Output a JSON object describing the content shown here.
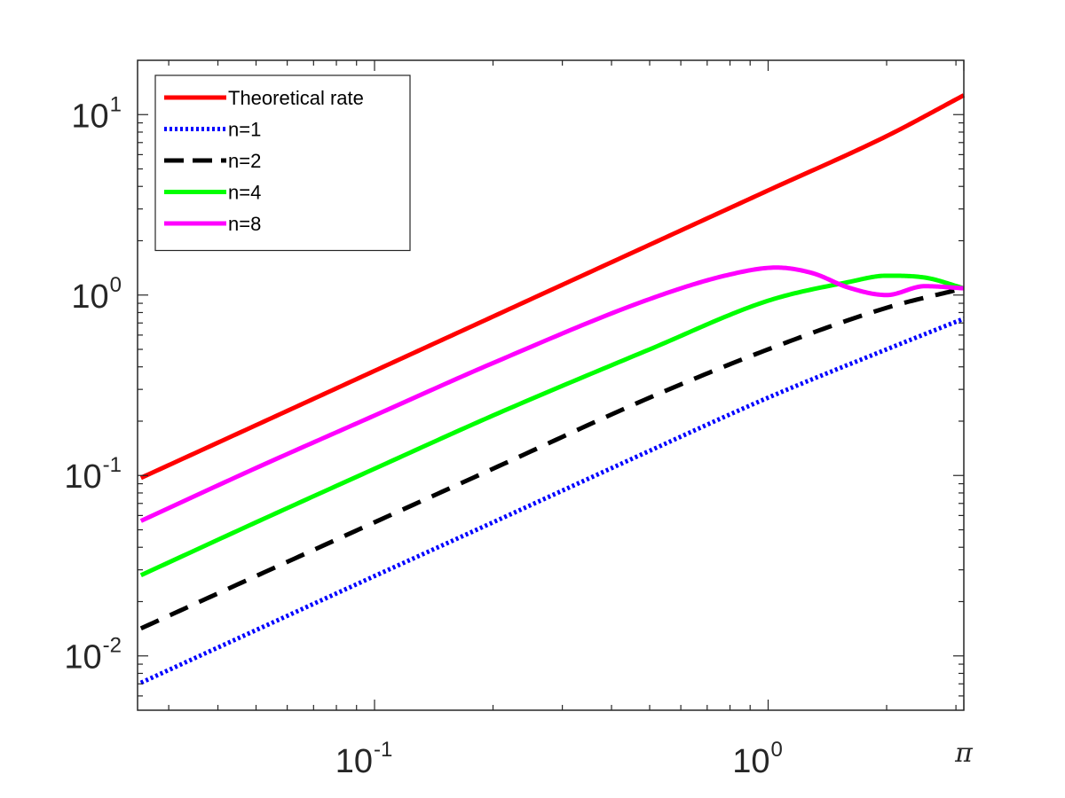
{
  "chart_data": {
    "type": "line",
    "title": "",
    "xlabel": "",
    "ylabel": "",
    "xscale": "log",
    "yscale": "log",
    "xlim": [
      0.025,
      3.14159
    ],
    "ylim": [
      0.005,
      20
    ],
    "grid": false,
    "legend_position": "top-left",
    "x_ticks": [
      {
        "value": 0.1,
        "base": "10",
        "exp": "-1"
      },
      {
        "value": 1,
        "base": "10",
        "exp": "0"
      },
      {
        "value": 3.14159,
        "label": "π"
      }
    ],
    "y_ticks": [
      {
        "value": 0.01,
        "base": "10",
        "exp": "-2"
      },
      {
        "value": 0.1,
        "base": "10",
        "exp": "-1"
      },
      {
        "value": 1,
        "base": "10",
        "exp": "0"
      },
      {
        "value": 10,
        "base": "10",
        "exp": "1"
      }
    ],
    "series": [
      {
        "name": "Theoretical rate",
        "color": "#ff0000",
        "style": "solid",
        "x": [
          0.0255,
          0.05,
          0.1,
          0.2,
          0.5,
          1.0,
          2.0,
          3.14159
        ],
        "y": [
          0.097,
          0.19,
          0.38,
          0.76,
          1.9,
          3.8,
          7.6,
          12.8
        ]
      },
      {
        "name": "n=1",
        "color": "#0000ff",
        "style": "dotted",
        "x": [
          0.0255,
          0.05,
          0.1,
          0.2,
          0.5,
          1.0,
          2.0,
          3.14159
        ],
        "y": [
          0.0071,
          0.0139,
          0.0277,
          0.055,
          0.137,
          0.27,
          0.5,
          0.74
        ]
      },
      {
        "name": "n=2",
        "color": "#000000",
        "style": "dashed",
        "x": [
          0.0255,
          0.05,
          0.1,
          0.2,
          0.5,
          1.0,
          2.0,
          3.14159
        ],
        "y": [
          0.0142,
          0.0277,
          0.055,
          0.109,
          0.27,
          0.5,
          0.85,
          1.09
        ]
      },
      {
        "name": "n=4",
        "color": "#00ff00",
        "style": "solid",
        "x": [
          0.0255,
          0.05,
          0.1,
          0.2,
          0.5,
          1.0,
          1.6,
          2.0,
          2.5,
          3.14159
        ],
        "y": [
          0.028,
          0.055,
          0.109,
          0.215,
          0.5,
          0.93,
          1.18,
          1.28,
          1.25,
          1.09
        ]
      },
      {
        "name": "n=8",
        "color": "#ff00ff",
        "style": "solid",
        "x": [
          0.0255,
          0.05,
          0.1,
          0.2,
          0.5,
          0.8,
          1.05,
          1.3,
          1.6,
          2.0,
          2.5,
          3.14159
        ],
        "y": [
          0.056,
          0.11,
          0.215,
          0.42,
          0.95,
          1.3,
          1.42,
          1.32,
          1.1,
          1.0,
          1.12,
          1.09
        ]
      }
    ]
  }
}
